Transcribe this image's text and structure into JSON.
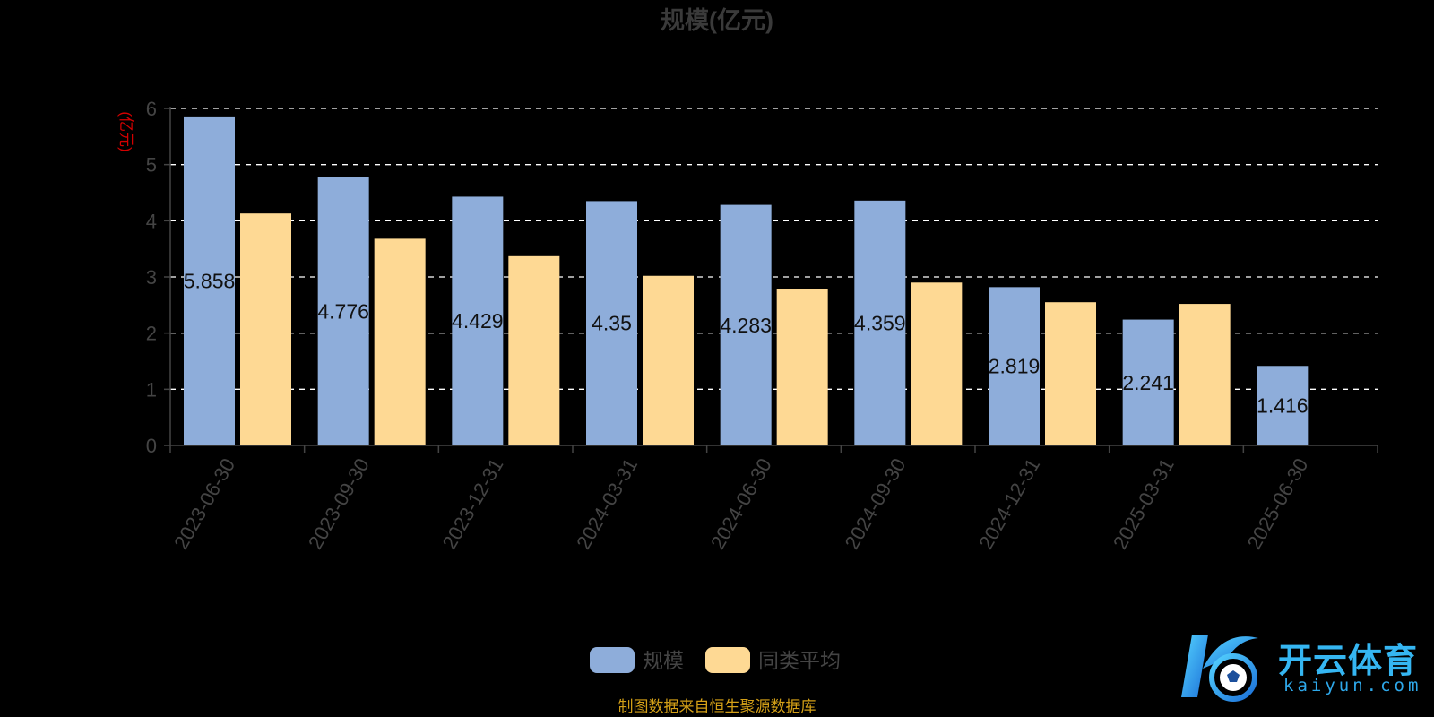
{
  "colors": {
    "background": "#000000",
    "series_primary": "#8eadda",
    "series_secondary": "#fed994",
    "title": "#3a3a3a",
    "axis_text": "#444444",
    "unit_label": "#d40000",
    "source_text": "#d4a017",
    "grid": "#ffffff",
    "logo": "#2fb0ee"
  },
  "chart_data": {
    "type": "bar",
    "title": "规模(亿元)",
    "ylabel": "(亿元)",
    "xlabel": "",
    "categories": [
      "2023-06-30",
      "2023-09-30",
      "2023-12-31",
      "2024-03-31",
      "2024-06-30",
      "2024-09-30",
      "2024-12-31",
      "2025-03-31",
      "2025-06-30"
    ],
    "series": [
      {
        "name": "规模",
        "values": [
          5.858,
          4.776,
          4.429,
          4.35,
          4.283,
          4.359,
          2.819,
          2.241,
          1.416
        ],
        "data_labels": [
          "5.858",
          "4.776",
          "4.429",
          "4.35",
          "4.283",
          "4.359",
          "2.819",
          "2.241",
          "1.416"
        ]
      },
      {
        "name": "同类平均",
        "values": [
          4.13,
          3.68,
          3.37,
          3.02,
          2.78,
          2.9,
          2.55,
          2.52,
          null
        ]
      }
    ],
    "yticks": [
      "0",
      "1",
      "2",
      "3",
      "4",
      "5",
      "6"
    ],
    "ylim": [
      0,
      6
    ],
    "grid": true,
    "grid_style": "dashed",
    "legend_position": "bottom-center",
    "source_note": "制图数据来自恒生聚源数据库"
  },
  "watermark": {
    "icon": "soccer-ball-k-logo-icon",
    "text_cn": "开云体育",
    "text_en": "kaiyun.com"
  }
}
